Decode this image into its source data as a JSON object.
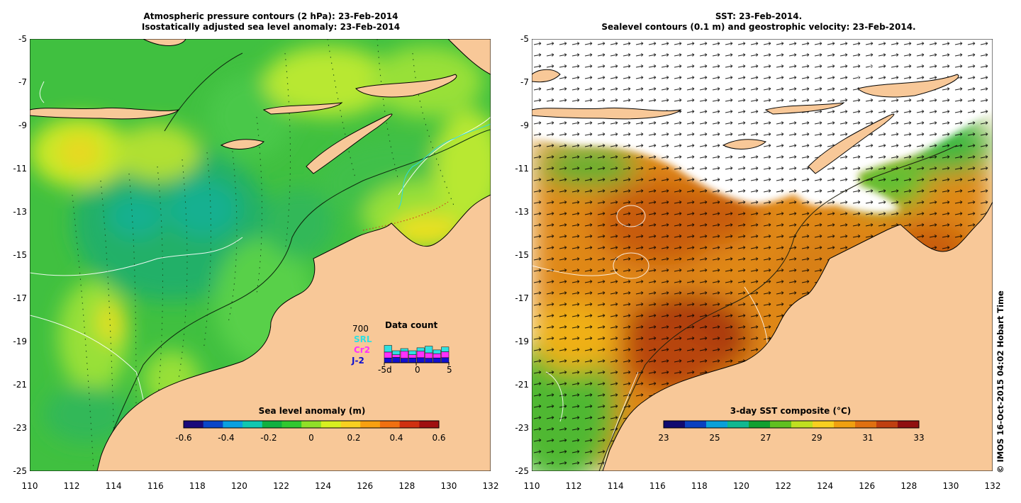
{
  "left_panel": {
    "title_line1": "Atmospheric pressure contours (2 hPa): 23-Feb-2014",
    "title_line2": "Isostatically adjusted sea level anomaly: 23-Feb-2014",
    "colorbar_label": "Sea level anomaly (m)",
    "colorbar_ticks": [
      "-0.6",
      "-0.4",
      "-0.2",
      "0",
      "0.2",
      "0.4",
      "0.6"
    ],
    "colorbar_colors": [
      "#1a0a7a",
      "#0a46c8",
      "#0aa0e0",
      "#10c8b0",
      "#10b040",
      "#30c830",
      "#90e028",
      "#d8f020",
      "#f8d020",
      "#f8a010",
      "#f07010",
      "#d03010",
      "#a01010"
    ],
    "legend": {
      "title": "Data count",
      "max_count": "700",
      "satellites": [
        {
          "name": "SRL",
          "color": "#30e0e0"
        },
        {
          "name": "Cr2",
          "color": "#ff30ff"
        },
        {
          "name": "J-2",
          "color": "#1010d0"
        }
      ],
      "x_ticks": [
        "-5d",
        "0",
        "5"
      ],
      "bars": [
        {
          "j2": 180,
          "cr2": 220,
          "srl": 250
        },
        {
          "j2": 200,
          "cr2": 100,
          "srl": 150
        },
        {
          "j2": 170,
          "cr2": 260,
          "srl": 100
        },
        {
          "j2": 180,
          "cr2": 120,
          "srl": 150
        },
        {
          "j2": 190,
          "cr2": 240,
          "srl": 130
        },
        {
          "j2": 170,
          "cr2": 200,
          "srl": 250
        },
        {
          "j2": 180,
          "cr2": 160,
          "srl": 140
        },
        {
          "j2": 190,
          "cr2": 220,
          "srl": 180
        }
      ]
    }
  },
  "right_panel": {
    "title_line1": "SST: 23-Feb-2014.",
    "title_line2": "Sealevel contours (0.1 m) and geostrophic velocity: 23-Feb-2014.",
    "colorbar_label": "3-day SST composite (°C)",
    "colorbar_ticks": [
      "23",
      "25",
      "27",
      "29",
      "31",
      "33"
    ],
    "colorbar_colors": [
      "#100a70",
      "#0a40c0",
      "#0aa0d8",
      "#10b890",
      "#10a030",
      "#60c020",
      "#c0e020",
      "#f8d020",
      "#f0a010",
      "#e07010",
      "#c04010",
      "#901010"
    ]
  },
  "axes": {
    "x_ticks": [
      "110",
      "112",
      "114",
      "116",
      "118",
      "120",
      "122",
      "124",
      "126",
      "128",
      "130",
      "132"
    ],
    "y_ticks": [
      "-5",
      "-7",
      "-9",
      "-11",
      "-13",
      "-15",
      "-17",
      "-19",
      "-21",
      "-23",
      "-25"
    ]
  },
  "colors": {
    "land": "#f8c898",
    "ocean_green": "#48c848",
    "ocean_light": "#98e038",
    "warm_sst": "#d87818",
    "hot_sst": "#a83808"
  },
  "credit": "© IMOS 16-Oct-2015 04:02 Hobart Time"
}
